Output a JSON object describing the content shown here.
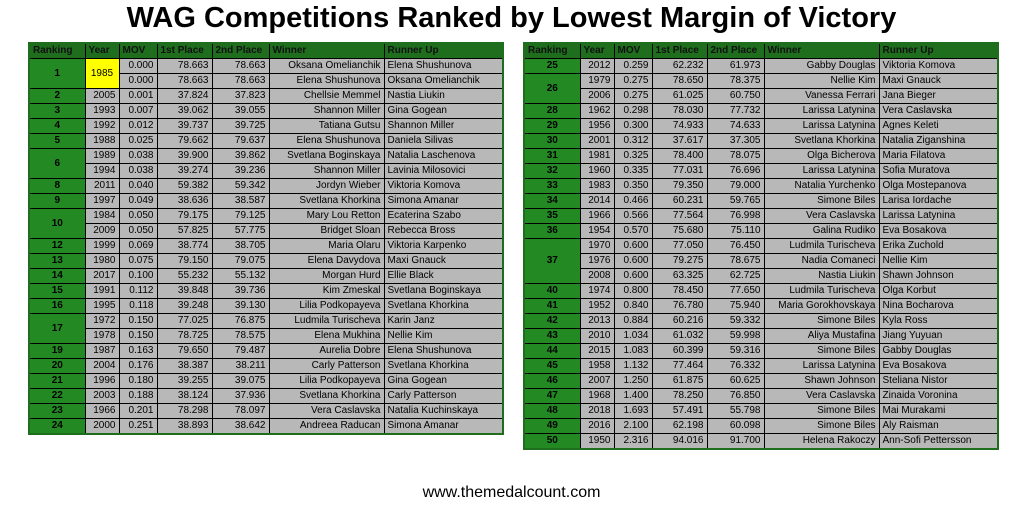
{
  "title": "WAG Competitions Ranked by Lowest Margin of Victory",
  "footer": "www.themedalcount.com",
  "headers": [
    "Ranking",
    "Year",
    "MOV",
    "1st Place",
    "2nd Place",
    "Winner",
    "Runner Up"
  ],
  "left": {
    "groups": [
      {
        "rank": "1",
        "year": "1985",
        "rows": [
          [
            "0.000",
            "78.663",
            "78.663",
            "Oksana Omelianchik",
            "Elena Shushunova"
          ],
          [
            "0.000",
            "78.663",
            "78.663",
            "Elena Shushunova",
            "Oksana Omelianchik"
          ]
        ]
      },
      {
        "rank": "2",
        "rows": [
          [
            "2005",
            "0.001",
            "37.824",
            "37.823",
            "Chellsie Memmel",
            "Nastia Liukin"
          ]
        ]
      },
      {
        "rank": "3",
        "rows": [
          [
            "1993",
            "0.007",
            "39.062",
            "39.055",
            "Shannon Miller",
            "Gina Gogean"
          ]
        ]
      },
      {
        "rank": "4",
        "rows": [
          [
            "1992",
            "0.012",
            "39.737",
            "39.725",
            "Tatiana Gutsu",
            "Shannon Miller"
          ]
        ]
      },
      {
        "rank": "5",
        "rows": [
          [
            "1988",
            "0.025",
            "79.662",
            "79.637",
            "Elena Shushunova",
            "Daniela Silivas"
          ]
        ]
      },
      {
        "rank": "6",
        "rows": [
          [
            "1989",
            "0.038",
            "39.900",
            "39.862",
            "Svetlana Boginskaya",
            "Natalia Laschenova"
          ],
          [
            "1994",
            "0.038",
            "39.274",
            "39.236",
            "Shannon Miller",
            "Lavinia Milosovici"
          ]
        ]
      },
      {
        "rank": "8",
        "rows": [
          [
            "2011",
            "0.040",
            "59.382",
            "59.342",
            "Jordyn Wieber",
            "Viktoria Komova"
          ]
        ]
      },
      {
        "rank": "9",
        "rows": [
          [
            "1997",
            "0.049",
            "38.636",
            "38.587",
            "Svetlana Khorkina",
            "Simona Amanar"
          ]
        ]
      },
      {
        "rank": "10",
        "rows": [
          [
            "1984",
            "0.050",
            "79.175",
            "79.125",
            "Mary Lou Retton",
            "Ecaterina Szabo"
          ],
          [
            "2009",
            "0.050",
            "57.825",
            "57.775",
            "Bridget Sloan",
            "Rebecca Bross"
          ]
        ]
      },
      {
        "rank": "12",
        "rows": [
          [
            "1999",
            "0.069",
            "38.774",
            "38.705",
            "Maria Olaru",
            "Viktoria Karpenko"
          ]
        ]
      },
      {
        "rank": "13",
        "rows": [
          [
            "1980",
            "0.075",
            "79.150",
            "79.075",
            "Elena Davydova",
            "Maxi Gnauck"
          ]
        ]
      },
      {
        "rank": "14",
        "rows": [
          [
            "2017",
            "0.100",
            "55.232",
            "55.132",
            "Morgan Hurd",
            "Ellie Black"
          ]
        ]
      },
      {
        "rank": "15",
        "rows": [
          [
            "1991",
            "0.112",
            "39.848",
            "39.736",
            "Kim Zmeskal",
            "Svetlana Boginskaya"
          ]
        ]
      },
      {
        "rank": "16",
        "rows": [
          [
            "1995",
            "0.118",
            "39.248",
            "39.130",
            "Lilia Podkopayeva",
            "Svetlana Khorkina"
          ]
        ]
      },
      {
        "rank": "17",
        "rows": [
          [
            "1972",
            "0.150",
            "77.025",
            "76.875",
            "Ludmila Turischeva",
            "Karin Janz"
          ],
          [
            "1978",
            "0.150",
            "78.725",
            "78.575",
            "Elena Mukhina",
            "Nellie Kim"
          ]
        ]
      },
      {
        "rank": "19",
        "rows": [
          [
            "1987",
            "0.163",
            "79.650",
            "79.487",
            "Aurelia Dobre",
            "Elena Shushunova"
          ]
        ]
      },
      {
        "rank": "20",
        "rows": [
          [
            "2004",
            "0.176",
            "38.387",
            "38.211",
            "Carly Patterson",
            "Svetlana Khorkina"
          ]
        ]
      },
      {
        "rank": "21",
        "rows": [
          [
            "1996",
            "0.180",
            "39.255",
            "39.075",
            "Lilia Podkopayeva",
            "Gina Gogean"
          ]
        ]
      },
      {
        "rank": "22",
        "rows": [
          [
            "2003",
            "0.188",
            "38.124",
            "37.936",
            "Svetlana Khorkina",
            "Carly Patterson"
          ]
        ]
      },
      {
        "rank": "23",
        "rows": [
          [
            "1966",
            "0.201",
            "78.298",
            "78.097",
            "Vera Caslavska",
            "Natalia Kuchinskaya"
          ]
        ]
      },
      {
        "rank": "24",
        "rows": [
          [
            "2000",
            "0.251",
            "38.893",
            "38.642",
            "Andreea Raducan",
            "Simona Amanar"
          ]
        ]
      }
    ]
  },
  "right": {
    "groups": [
      {
        "rank": "25",
        "rows": [
          [
            "2012",
            "0.259",
            "62.232",
            "61.973",
            "Gabby Douglas",
            "Viktoria Komova"
          ]
        ]
      },
      {
        "rank": "26",
        "rows": [
          [
            "1979",
            "0.275",
            "78.650",
            "78.375",
            "Nellie Kim",
            "Maxi Gnauck"
          ],
          [
            "2006",
            "0.275",
            "61.025",
            "60.750",
            "Vanessa Ferrari",
            "Jana Bieger"
          ]
        ]
      },
      {
        "rank": "28",
        "rows": [
          [
            "1962",
            "0.298",
            "78.030",
            "77.732",
            "Larissa Latynina",
            "Vera Caslavska"
          ]
        ]
      },
      {
        "rank": "29",
        "rows": [
          [
            "1956",
            "0.300",
            "74.933",
            "74.633",
            "Larissa Latynina",
            "Agnes Keleti"
          ]
        ]
      },
      {
        "rank": "30",
        "rows": [
          [
            "2001",
            "0.312",
            "37.617",
            "37.305",
            "Svetlana Khorkina",
            "Natalia Ziganshina"
          ]
        ]
      },
      {
        "rank": "31",
        "rows": [
          [
            "1981",
            "0.325",
            "78.400",
            "78.075",
            "Olga Bicherova",
            "Maria Filatova"
          ]
        ]
      },
      {
        "rank": "32",
        "rows": [
          [
            "1960",
            "0.335",
            "77.031",
            "76.696",
            "Larissa Latynina",
            "Sofia Muratova"
          ]
        ]
      },
      {
        "rank": "33",
        "rows": [
          [
            "1983",
            "0.350",
            "79.350",
            "79.000",
            "Natalia Yurchenko",
            "Olga Mostepanova"
          ]
        ]
      },
      {
        "rank": "34",
        "rows": [
          [
            "2014",
            "0.466",
            "60.231",
            "59.765",
            "Simone Biles",
            "Larisa Iordache"
          ]
        ]
      },
      {
        "rank": "35",
        "rows": [
          [
            "1966",
            "0.566",
            "77.564",
            "76.998",
            "Vera Caslavska",
            "Larissa Latynina"
          ]
        ]
      },
      {
        "rank": "36",
        "rows": [
          [
            "1954",
            "0.570",
            "75.680",
            "75.110",
            "Galina Rudiko",
            "Eva Bosakova"
          ]
        ]
      },
      {
        "rank": "37",
        "rows": [
          [
            "1970",
            "0.600",
            "77.050",
            "76.450",
            "Ludmila Turischeva",
            "Erika Zuchold"
          ],
          [
            "1976",
            "0.600",
            "79.275",
            "78.675",
            "Nadia Comaneci",
            "Nellie Kim"
          ],
          [
            "2008",
            "0.600",
            "63.325",
            "62.725",
            "Nastia Liukin",
            "Shawn Johnson"
          ]
        ]
      },
      {
        "rank": "40",
        "rows": [
          [
            "1974",
            "0.800",
            "78.450",
            "77.650",
            "Ludmila Turischeva",
            "Olga Korbut"
          ]
        ]
      },
      {
        "rank": "41",
        "rows": [
          [
            "1952",
            "0.840",
            "76.780",
            "75.940",
            "Maria Gorokhovskaya",
            "Nina Bocharova"
          ]
        ]
      },
      {
        "rank": "42",
        "rows": [
          [
            "2013",
            "0.884",
            "60.216",
            "59.332",
            "Simone Biles",
            "Kyla Ross"
          ]
        ]
      },
      {
        "rank": "43",
        "rows": [
          [
            "2010",
            "1.034",
            "61.032",
            "59.998",
            "Aliya Mustafina",
            "Jiang Yuyuan"
          ]
        ]
      },
      {
        "rank": "44",
        "rows": [
          [
            "2015",
            "1.083",
            "60.399",
            "59.316",
            "Simone Biles",
            "Gabby Douglas"
          ]
        ]
      },
      {
        "rank": "45",
        "rows": [
          [
            "1958",
            "1.132",
            "77.464",
            "76.332",
            "Larissa Latynina",
            "Eva Bosakova"
          ]
        ]
      },
      {
        "rank": "46",
        "rows": [
          [
            "2007",
            "1.250",
            "61.875",
            "60.625",
            "Shawn Johnson",
            "Steliana Nistor"
          ]
        ]
      },
      {
        "rank": "47",
        "rows": [
          [
            "1968",
            "1.400",
            "78.250",
            "76.850",
            "Vera Caslavska",
            "Zinaida Voronina"
          ]
        ]
      },
      {
        "rank": "48",
        "rows": [
          [
            "2018",
            "1.693",
            "57.491",
            "55.798",
            "Simone Biles",
            "Mai Murakami"
          ]
        ]
      },
      {
        "rank": "49",
        "rows": [
          [
            "2016",
            "2.100",
            "62.198",
            "60.098",
            "Simone Biles",
            "Aly Raisman"
          ]
        ]
      },
      {
        "rank": "50",
        "rows": [
          [
            "1950",
            "2.316",
            "94.016",
            "91.700",
            "Helena Rakoczy",
            "Ann-Sofi Pettersson"
          ]
        ]
      }
    ]
  }
}
